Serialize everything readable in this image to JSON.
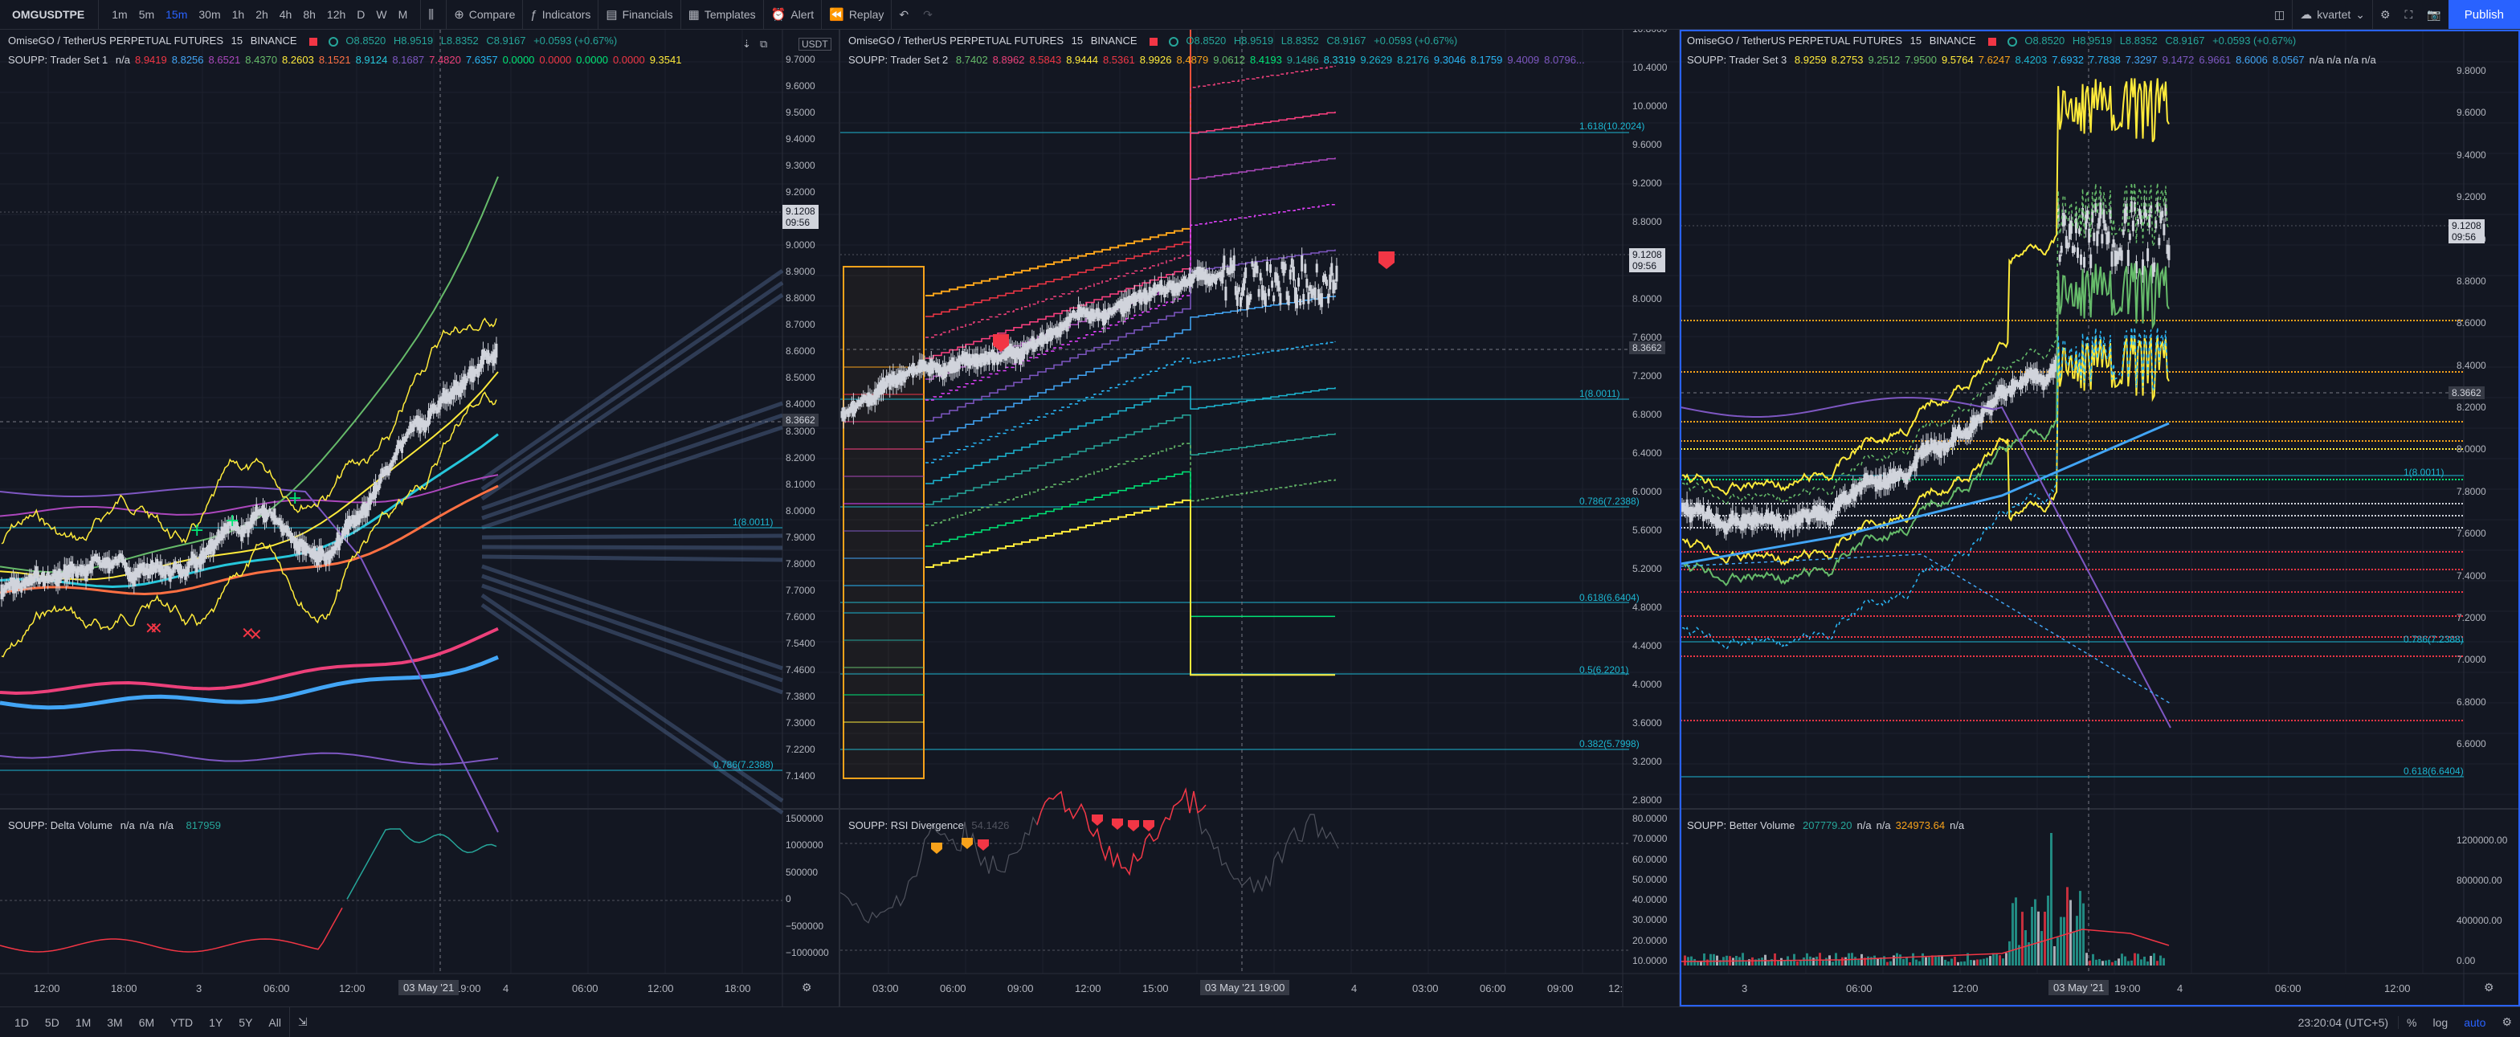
{
  "toolbar": {
    "symbol": "OMGUSDTPE",
    "intervals": [
      "1m",
      "5m",
      "15m",
      "30m",
      "1h",
      "2h",
      "4h",
      "8h",
      "12h",
      "D",
      "W",
      "M"
    ],
    "active_interval": "15m",
    "compare": "Compare",
    "indicators": "Indicators",
    "financials": "Financials",
    "templates": "Templates",
    "alert": "Alert",
    "replay": "Replay",
    "user": "kvartet",
    "publish": "Publish"
  },
  "header_common": {
    "title": "OmiseGO / TetherUS PERPETUAL FUTURES",
    "interval": "15",
    "exchange": "BINANCE",
    "o": "O8.8520",
    "h": "H8.9519",
    "l": "L8.8352",
    "c": "C8.9167",
    "change": "+0.0593 (+0.67%)"
  },
  "colors": {
    "bg": "#131722",
    "up": "#d1d4dc",
    "fib": "#1cb6d1",
    "orange": "#f7a21b",
    "red": "#f23645",
    "green": "#26a69a",
    "accent": "#2962ff"
  },
  "pane1": {
    "indicator": "SOUPP: Trader Set 1",
    "values": [
      {
        "v": "n/a",
        "c": "#d1d4dc"
      },
      {
        "v": "8.9419",
        "c": "#f23645"
      },
      {
        "v": "8.8256",
        "c": "#42a5f5"
      },
      {
        "v": "8.6521",
        "c": "#ab47bc"
      },
      {
        "v": "8.4370",
        "c": "#66bb6a"
      },
      {
        "v": "8.2603",
        "c": "#ffeb3b"
      },
      {
        "v": "8.1521",
        "c": "#ff7043"
      },
      {
        "v": "8.9124",
        "c": "#26c6da"
      },
      {
        "v": "8.1687",
        "c": "#7e57c2"
      },
      {
        "v": "7.4820",
        "c": "#ec407a"
      },
      {
        "v": "7.6357",
        "c": "#29b6f6"
      },
      {
        "v": "0.0000",
        "c": "#00e676"
      },
      {
        "v": "0.0000",
        "c": "#f23645"
      },
      {
        "v": "0.0000",
        "c": "#00e676"
      },
      {
        "v": "0.0000",
        "c": "#f23645"
      },
      {
        "v": "9.3541",
        "c": "#ffeb3b"
      }
    ],
    "axis": [
      "9.7000",
      "9.6000",
      "9.5000",
      "9.4000",
      "9.3000",
      "9.2000",
      "9.1000",
      "9.0000",
      "8.9000",
      "8.8000",
      "8.7000",
      "8.6000",
      "8.5000",
      "8.4000",
      "8.3000",
      "8.2000",
      "8.1000",
      "8.0000",
      "7.9000",
      "7.8000",
      "7.7000",
      "7.6000",
      "7.5400",
      "7.4600",
      "7.3800",
      "7.3000",
      "7.2200",
      "7.1400"
    ],
    "unit": "USDT",
    "last_price": "9.1208",
    "countdown": "09:56",
    "crosshair_price": "8.3662",
    "fib_1": "1(8.0011)",
    "fib_786": "0.786(7.2388)",
    "sub_indicator": "SOUPP: Delta Volume",
    "sub_values": [
      "n/a",
      "n/a",
      "n/a"
    ],
    "sub_last": "817959",
    "sub_axis": [
      "1500000",
      "1000000",
      "500000",
      "0",
      "−500000",
      "−1000000"
    ],
    "time_labels": [
      "12:00",
      "18:00",
      "3",
      "06:00",
      "12:00",
      "19:00",
      "4",
      "06:00",
      "12:00",
      "18:00"
    ],
    "time_cur": "03 May '21"
  },
  "pane2": {
    "indicator": "SOUPP: Trader Set 2",
    "values": [
      {
        "v": "8.7402",
        "c": "#66bb6a"
      },
      {
        "v": "8.8962",
        "c": "#ec407a"
      },
      {
        "v": "8.5843",
        "c": "#f23645"
      },
      {
        "v": "8.9444",
        "c": "#ffeb3b"
      },
      {
        "v": "8.5361",
        "c": "#f23645"
      },
      {
        "v": "8.9926",
        "c": "#ffeb3b"
      },
      {
        "v": "8.4879",
        "c": "#f7a21b"
      },
      {
        "v": "9.0612",
        "c": "#66bb6a"
      },
      {
        "v": "8.4193",
        "c": "#00e676"
      },
      {
        "v": "9.1486",
        "c": "#26a69a"
      },
      {
        "v": "8.3319",
        "c": "#26c6da"
      },
      {
        "v": "9.2629",
        "c": "#1cb6d1"
      },
      {
        "v": "8.2176",
        "c": "#1cb6d1"
      },
      {
        "v": "9.3046",
        "c": "#29b6f6"
      },
      {
        "v": "8.1759",
        "c": "#29b6f6"
      },
      {
        "v": "9.4009",
        "c": "#7e57c2"
      },
      {
        "v": "8.0796...",
        "c": "#7e57c2"
      }
    ],
    "axis": [
      "10.8000",
      "10.4000",
      "10.0000",
      "9.6000",
      "9.2000",
      "8.8000",
      "8.4000",
      "8.0000",
      "7.6000",
      "7.2000",
      "6.8000",
      "6.4000",
      "6.0000",
      "5.6000",
      "5.2000",
      "4.8000",
      "4.4000",
      "4.0000",
      "3.6000",
      "3.2000",
      "2.8000"
    ],
    "last_price": "9.1208",
    "countdown": "09:56",
    "crosshair_price": "8.3662",
    "fibs": [
      "1.618(10.2024)",
      "1(8.0011)",
      "0.786(7.2388)",
      "0.618(6.6404)",
      "0.5(6.2201)",
      "0.382(5.7998)"
    ],
    "sub_indicator": "SOUPP: RSI Divergence",
    "sub_value": "54.1426",
    "sub_axis": [
      "80.0000",
      "70.0000",
      "60.0000",
      "50.0000",
      "40.0000",
      "30.0000",
      "20.0000",
      "10.0000"
    ],
    "time_labels": [
      "03:00",
      "06:00",
      "09:00",
      "12:00",
      "15:00",
      "4",
      "03:00",
      "06:00",
      "09:00",
      "12:"
    ],
    "time_cur": "03 May '21",
    "time_cur2": "19:00",
    "marker": "2"
  },
  "pane3": {
    "indicator": "SOUPP: Trader Set 3",
    "values": [
      {
        "v": "8.9259",
        "c": "#ffeb3b"
      },
      {
        "v": "8.2753",
        "c": "#ffeb3b"
      },
      {
        "v": "9.2512",
        "c": "#66bb6a"
      },
      {
        "v": "7.9500",
        "c": "#66bb6a"
      },
      {
        "v": "9.5764",
        "c": "#ffeb3b"
      },
      {
        "v": "7.6247",
        "c": "#f7a21b"
      },
      {
        "v": "8.4203",
        "c": "#1cb6d1"
      },
      {
        "v": "7.6932",
        "c": "#29b6f6"
      },
      {
        "v": "7.7838",
        "c": "#29b6f6"
      },
      {
        "v": "7.3297",
        "c": "#42a5f5"
      },
      {
        "v": "9.1472",
        "c": "#7e57c2"
      },
      {
        "v": "6.9661",
        "c": "#7e57c2"
      },
      {
        "v": "8.6006",
        "c": "#42a5f5"
      },
      {
        "v": "8.0567",
        "c": "#42a5f5"
      },
      {
        "v": "n/a n/a n/a n/a",
        "c": "#d1d4dc"
      }
    ],
    "axis": [
      "9.8000",
      "9.6000",
      "9.4000",
      "9.2000",
      "9.0000",
      "8.8000",
      "8.6000",
      "8.4000",
      "8.2000",
      "8.0000",
      "7.8000",
      "7.6000",
      "7.4000",
      "7.2000",
      "7.0000",
      "6.8000",
      "6.6000"
    ],
    "last_price": "9.1208",
    "countdown": "09:56",
    "crosshair_price": "8.3662",
    "fibs": [
      "1(8.0011)",
      "0.786(7.2388)",
      "0.618(6.6404)"
    ],
    "sub_indicator": "SOUPP: Better Volume",
    "sub_values": [
      {
        "v": "207779.20",
        "c": "#26a69a"
      },
      {
        "v": "n/a",
        "c": "#d1d4dc"
      },
      {
        "v": "n/a",
        "c": "#d1d4dc"
      },
      {
        "v": "324973.64",
        "c": "#f7a21b"
      },
      {
        "v": "n/a",
        "c": "#d1d4dc"
      }
    ],
    "sub_axis": [
      "1200000.00",
      "800000.00",
      "400000.00",
      "0.00"
    ],
    "time_labels": [
      "3",
      "06:00",
      "12:00",
      "19:00",
      "4",
      "06:00",
      "12:00"
    ],
    "time_cur": "03 May '21"
  },
  "bottom": {
    "ranges": [
      "1D",
      "5D",
      "1M",
      "3M",
      "6M",
      "YTD",
      "1Y",
      "5Y",
      "All"
    ],
    "clock": "23:20:04 (UTC+5)",
    "pct": "%",
    "log": "log",
    "auto": "auto"
  }
}
